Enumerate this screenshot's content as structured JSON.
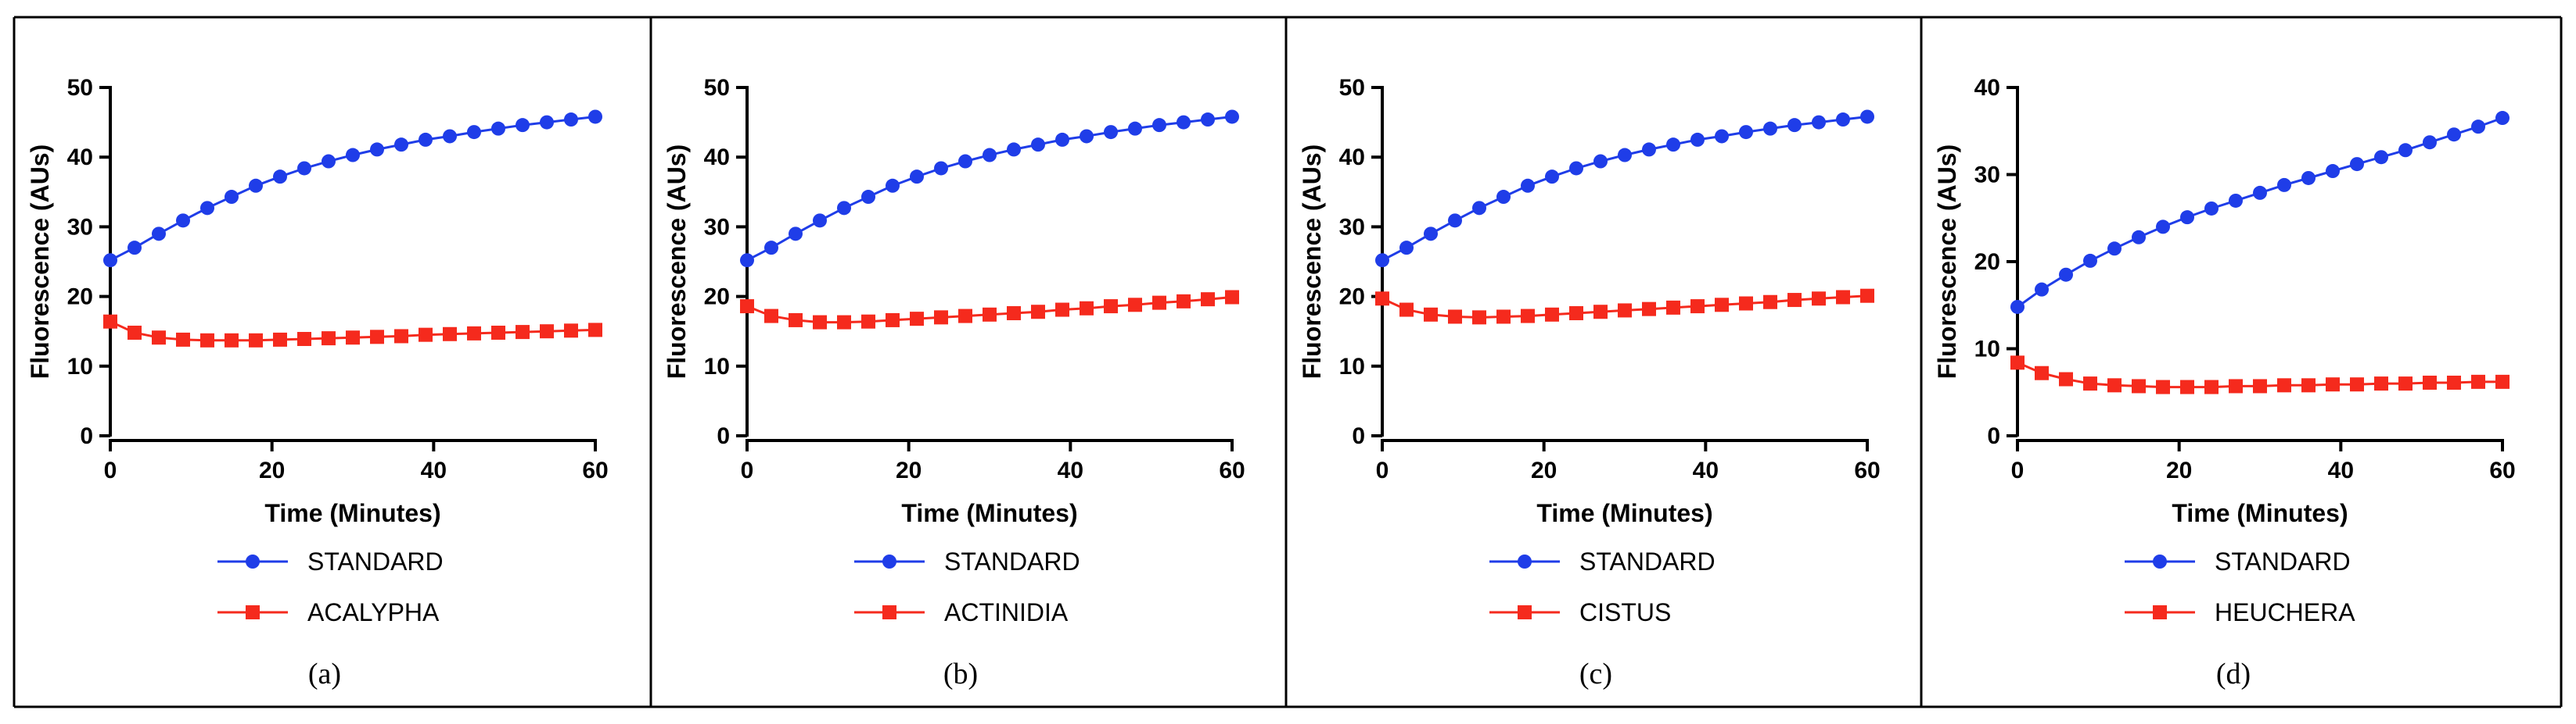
{
  "figure": {
    "captions": [
      "(a)",
      "(b)",
      "(c)",
      "(d)"
    ]
  },
  "chart_data": [
    {
      "type": "line",
      "panel": "(a)",
      "xlabel": "Time (Minutes)",
      "ylabel": "Fluorescence (AUs)",
      "xlim": [
        0,
        60
      ],
      "ylim": [
        0,
        50
      ],
      "xticks": [
        0,
        20,
        40,
        60
      ],
      "yticks": [
        0,
        10,
        20,
        30,
        40,
        50
      ],
      "x": [
        0,
        3,
        6,
        9,
        12,
        15,
        18,
        21,
        24,
        27,
        30,
        33,
        36,
        39,
        42,
        45,
        48,
        51,
        54,
        57,
        60
      ],
      "series": [
        {
          "name": "STANDARD",
          "color": "#1f3de8",
          "marker": "circle",
          "values": [
            25.2,
            27.0,
            29.0,
            30.9,
            32.7,
            34.3,
            35.9,
            37.2,
            38.4,
            39.4,
            40.3,
            41.1,
            41.8,
            42.5,
            43.0,
            43.6,
            44.1,
            44.6,
            45.0,
            45.4,
            45.8
          ]
        },
        {
          "name": "ACALYPHA",
          "color": "#f52a1d",
          "marker": "square",
          "values": [
            16.4,
            14.8,
            14.1,
            13.8,
            13.7,
            13.7,
            13.7,
            13.8,
            13.9,
            14.0,
            14.1,
            14.2,
            14.3,
            14.5,
            14.6,
            14.7,
            14.8,
            14.9,
            15.0,
            15.1,
            15.2
          ]
        }
      ]
    },
    {
      "type": "line",
      "panel": "(b)",
      "xlabel": "Time (Minutes)",
      "ylabel": "Fluorescence (AUs)",
      "xlim": [
        0,
        60
      ],
      "ylim": [
        0,
        50
      ],
      "xticks": [
        0,
        20,
        40,
        60
      ],
      "yticks": [
        0,
        10,
        20,
        30,
        40,
        50
      ],
      "x": [
        0,
        3,
        6,
        9,
        12,
        15,
        18,
        21,
        24,
        27,
        30,
        33,
        36,
        39,
        42,
        45,
        48,
        51,
        54,
        57,
        60
      ],
      "series": [
        {
          "name": "STANDARD",
          "color": "#1f3de8",
          "marker": "circle",
          "values": [
            25.2,
            27.0,
            29.0,
            30.9,
            32.7,
            34.3,
            35.9,
            37.2,
            38.4,
            39.4,
            40.3,
            41.1,
            41.8,
            42.5,
            43.0,
            43.6,
            44.1,
            44.6,
            45.0,
            45.4,
            45.8
          ]
        },
        {
          "name": "ACTINIDIA",
          "color": "#f52a1d",
          "marker": "square",
          "values": [
            18.6,
            17.2,
            16.6,
            16.3,
            16.3,
            16.4,
            16.6,
            16.8,
            17.0,
            17.2,
            17.4,
            17.6,
            17.8,
            18.1,
            18.3,
            18.6,
            18.8,
            19.1,
            19.3,
            19.6,
            19.9
          ]
        }
      ]
    },
    {
      "type": "line",
      "panel": "(c)",
      "xlabel": "Time (Minutes)",
      "ylabel": "Fluorescence (AUs)",
      "xlim": [
        0,
        60
      ],
      "ylim": [
        0,
        50
      ],
      "xticks": [
        0,
        20,
        40,
        60
      ],
      "yticks": [
        0,
        10,
        20,
        30,
        40,
        50
      ],
      "x": [
        0,
        3,
        6,
        9,
        12,
        15,
        18,
        21,
        24,
        27,
        30,
        33,
        36,
        39,
        42,
        45,
        48,
        51,
        54,
        57,
        60
      ],
      "series": [
        {
          "name": "STANDARD",
          "color": "#1f3de8",
          "marker": "circle",
          "values": [
            25.2,
            27.0,
            29.0,
            30.9,
            32.7,
            34.3,
            35.9,
            37.2,
            38.4,
            39.4,
            40.3,
            41.1,
            41.8,
            42.5,
            43.0,
            43.6,
            44.1,
            44.6,
            45.0,
            45.4,
            45.8
          ]
        },
        {
          "name": "CISTUS",
          "color": "#f52a1d",
          "marker": "square",
          "values": [
            19.7,
            18.1,
            17.4,
            17.1,
            17.0,
            17.1,
            17.2,
            17.4,
            17.6,
            17.8,
            18.0,
            18.2,
            18.4,
            18.6,
            18.8,
            19.0,
            19.2,
            19.5,
            19.7,
            19.9,
            20.1
          ]
        }
      ]
    },
    {
      "type": "line",
      "panel": "(d)",
      "xlabel": "Time (Minutes)",
      "ylabel": "Fluorescence (AUs)",
      "xlim": [
        0,
        60
      ],
      "ylim": [
        0,
        40
      ],
      "xticks": [
        0,
        20,
        40,
        60
      ],
      "yticks": [
        0,
        10,
        20,
        30,
        40
      ],
      "x": [
        0,
        3,
        6,
        9,
        12,
        15,
        18,
        21,
        24,
        27,
        30,
        33,
        36,
        39,
        42,
        45,
        48,
        51,
        54,
        57,
        60
      ],
      "series": [
        {
          "name": "STANDARD",
          "color": "#1f3de8",
          "marker": "circle",
          "values": [
            14.8,
            16.8,
            18.5,
            20.1,
            21.5,
            22.8,
            24.0,
            25.1,
            26.1,
            27.0,
            27.9,
            28.8,
            29.6,
            30.4,
            31.2,
            32.0,
            32.8,
            33.7,
            34.6,
            35.5,
            36.5
          ]
        },
        {
          "name": "HEUCHERA",
          "color": "#f52a1d",
          "marker": "square",
          "values": [
            8.4,
            7.2,
            6.5,
            6.0,
            5.8,
            5.7,
            5.6,
            5.6,
            5.6,
            5.7,
            5.7,
            5.8,
            5.8,
            5.9,
            5.9,
            6.0,
            6.0,
            6.1,
            6.1,
            6.2,
            6.2
          ]
        }
      ]
    }
  ]
}
